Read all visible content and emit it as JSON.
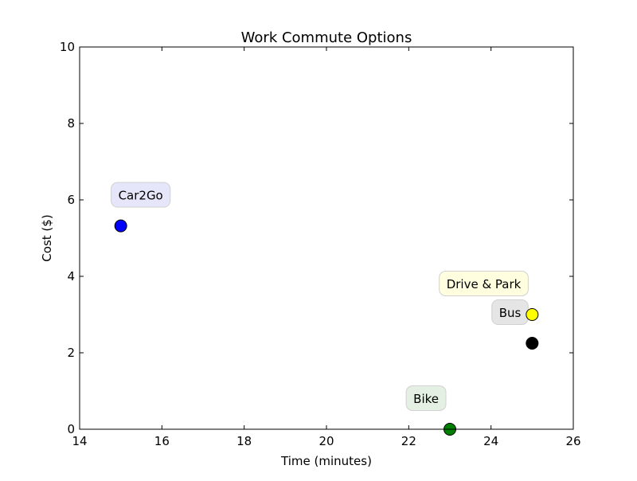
{
  "chart_data": {
    "type": "scatter",
    "title": "Work Commute Options",
    "xlabel": "Time (minutes)",
    "ylabel": "Cost ($)",
    "xlim": [
      14,
      26
    ],
    "ylim": [
      0,
      10
    ],
    "xticks": [
      "14",
      "16",
      "18",
      "20",
      "22",
      "24",
      "26"
    ],
    "yticks": [
      "0",
      "2",
      "4",
      "6",
      "8",
      "10"
    ],
    "grid": false,
    "points": [
      {
        "label": "Car2Go",
        "x": 15,
        "y": 5.32,
        "color": "#0000ff",
        "annotation_bg": "#e6e6fa"
      },
      {
        "label": "Drive & Park",
        "x": 25,
        "y": 3.0,
        "color": "#ffff00",
        "annotation_bg": "#ffffe0"
      },
      {
        "label": "Bus",
        "x": 25,
        "y": 2.25,
        "color": "#000000",
        "annotation_bg": "#e5e5e5"
      },
      {
        "label": "Bike",
        "x": 23,
        "y": 0.0,
        "color": "#008000",
        "annotation_bg": "#e3f0e3"
      }
    ]
  }
}
